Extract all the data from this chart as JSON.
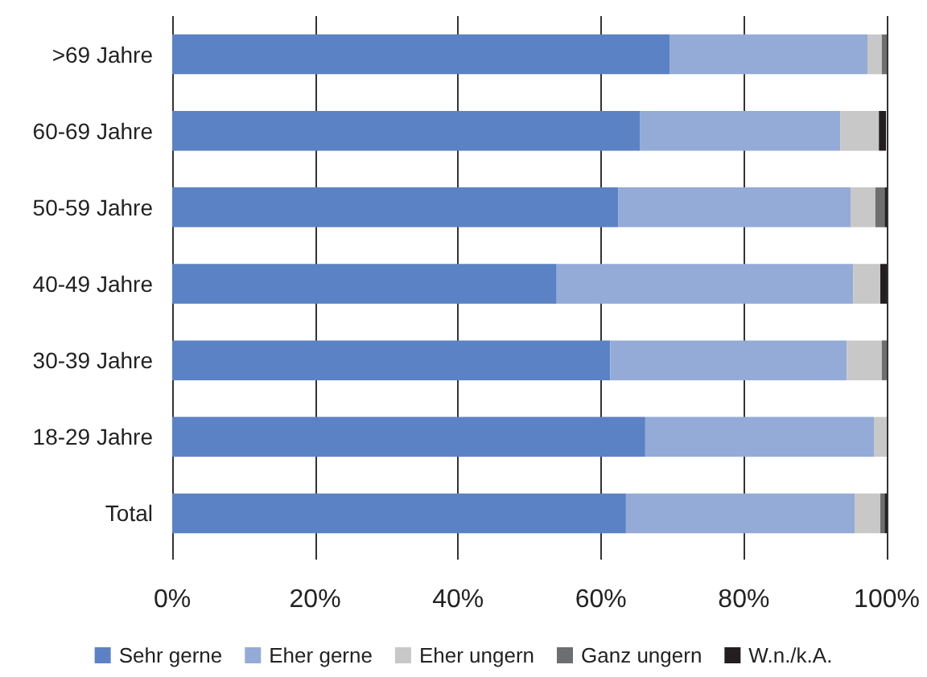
{
  "chart_data": {
    "type": "bar",
    "orientation": "horizontal",
    "stacked": true,
    "categories": [
      ">69 Jahre",
      "60-69 Jahre",
      "50-59 Jahre",
      "40-49 Jahre",
      "30-39 Jahre",
      "18-29 Jahre",
      "Total"
    ],
    "series": [
      {
        "name": "Sehr gerne",
        "color": "#5b82c4",
        "values": [
          69.6,
          65.5,
          62.4,
          53.8,
          61.3,
          66.2,
          63.5
        ]
      },
      {
        "name": "Eher gerne",
        "color": "#94abd8",
        "values": [
          27.7,
          28.0,
          32.6,
          41.5,
          33.1,
          32.0,
          32.0
        ]
      },
      {
        "name": "Eher ungern",
        "color": "#c8c8c8",
        "values": [
          2.0,
          5.4,
          3.4,
          3.8,
          4.9,
          1.8,
          3.6
        ]
      },
      {
        "name": "Ganz ungern",
        "color": "#6d6e70",
        "values": [
          0.7,
          0,
          1.3,
          0,
          0.7,
          0,
          0.6
        ]
      },
      {
        "name": "W.n./k.A.",
        "color": "#231f20",
        "values": [
          0,
          1.0,
          0.3,
          0.9,
          0,
          0,
          0.3
        ]
      }
    ],
    "xlim": [
      0,
      100
    ],
    "xticks": [
      {
        "value": 0,
        "label": "0%"
      },
      {
        "value": 20,
        "label": "20%"
      },
      {
        "value": 40,
        "label": "40%"
      },
      {
        "value": 60,
        "label": "60%"
      },
      {
        "value": 80,
        "label": "80%"
      },
      {
        "value": 100,
        "label": "100%"
      }
    ],
    "grid": "x",
    "legend": "bottom"
  }
}
